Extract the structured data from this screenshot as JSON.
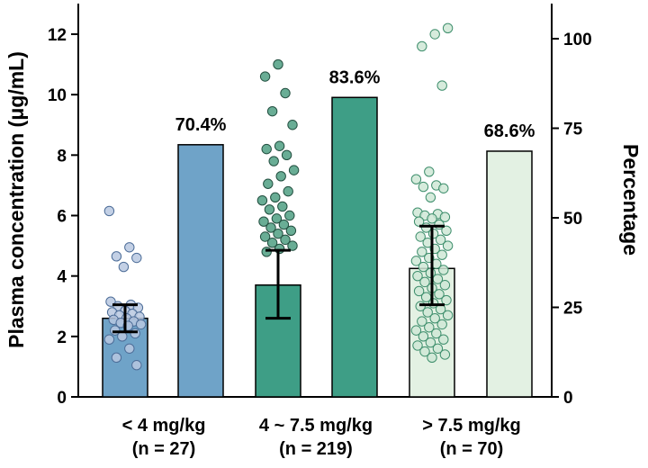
{
  "chart_data": {
    "type": "bar",
    "ylabel": "Plasma concentration (μg/mL)",
    "y2label": "Percentage",
    "ylim": [
      0,
      13
    ],
    "y2lim": [
      0,
      108.33
    ],
    "yticks": [
      "0",
      "2",
      "4",
      "6",
      "8",
      "10",
      "12"
    ],
    "y2ticks": [
      "0",
      "25",
      "50",
      "75",
      "100"
    ],
    "colors": {
      "group1": "#6fa3c8",
      "group2": "#3e9e86",
      "group3": "#e3f1e3",
      "dot1": "#b9c8e0",
      "dot2": "#4f9f82",
      "dot3": "#cfe8d6",
      "dot1_edge": "#4d6d98",
      "dot2_edge": "#234f40",
      "dot3_edge": "#3f8f6d"
    },
    "groups": [
      {
        "category_line1": "< 4 mg/kg",
        "category_line2": "(n = 27)",
        "mean_concentration": 2.6,
        "error_low": 2.15,
        "error_high": 3.05,
        "percentage": 70.4,
        "percentage_label": "70.4%",
        "points": [
          6.15,
          4.95,
          4.65,
          4.6,
          4.3,
          3.15,
          3.05,
          3.0,
          2.95,
          2.85,
          2.8,
          2.75,
          2.7,
          2.65,
          2.6,
          2.55,
          2.5,
          2.45,
          2.4,
          2.35,
          2.2,
          2.1,
          2.0,
          1.9,
          1.6,
          1.3,
          1.05
        ]
      },
      {
        "category_line1": "4 ~ 7.5 mg/kg",
        "category_line2": "(n = 219)",
        "mean_concentration": 3.7,
        "error_low": 2.6,
        "error_high": 4.85,
        "percentage": 83.6,
        "percentage_label": "83.6%",
        "points": [
          11.0,
          10.6,
          10.05,
          9.45,
          9.0,
          8.3,
          8.2,
          8.0,
          7.8,
          7.5,
          7.3,
          7.05,
          6.8,
          6.6,
          6.5,
          6.3,
          6.2,
          6.0,
          5.9,
          5.8,
          5.7,
          5.6,
          5.5,
          5.4,
          5.3,
          5.2,
          5.1,
          5.0,
          4.9,
          4.8
        ]
      },
      {
        "category_line1": "> 7.5 mg/kg",
        "category_line2": "(n = 70)",
        "mean_concentration": 4.25,
        "error_low": 3.05,
        "error_high": 5.65,
        "percentage": 68.6,
        "percentage_label": "68.6%",
        "points": [
          12.2,
          12.0,
          11.6,
          10.3,
          7.45,
          7.2,
          7.0,
          6.95,
          6.9,
          6.6,
          6.1,
          6.05,
          6.0,
          5.95,
          5.9,
          5.8,
          5.7,
          5.6,
          5.5,
          5.4,
          5.3,
          5.2,
          5.1,
          5.0,
          4.9,
          4.8,
          4.7,
          4.6,
          4.5,
          4.4,
          4.3,
          4.2,
          4.1,
          4.0,
          3.9,
          3.8,
          3.7,
          3.6,
          3.5,
          3.4,
          3.3,
          3.2,
          3.1,
          3.0,
          2.9,
          2.8,
          2.7,
          2.6,
          2.5,
          2.4,
          2.3,
          2.2,
          2.1,
          2.0,
          1.9,
          1.8,
          1.7,
          1.6,
          1.5,
          1.4,
          1.3
        ]
      }
    ]
  }
}
